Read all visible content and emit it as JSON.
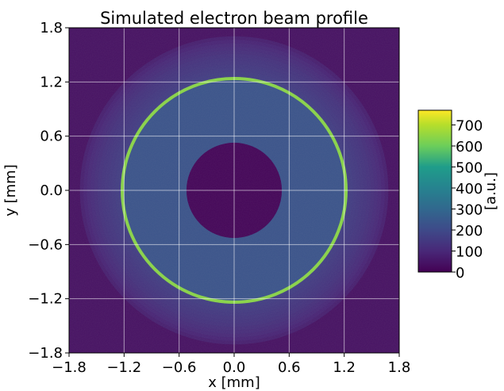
{
  "chart_data": {
    "type": "heatmap",
    "title": "Simulated electron beam profile",
    "xlabel": "x [mm]",
    "ylabel": "y [mm]",
    "xlim": [
      -1.8,
      1.8
    ],
    "ylim": [
      -1.8,
      1.8
    ],
    "x_ticks": [
      "−1.8",
      "−1.2",
      "−0.6",
      "0.0",
      "0.6",
      "1.2",
      "1.8"
    ],
    "y_ticks": [
      "−1.8",
      "−1.2",
      "−0.6",
      "0.0",
      "0.6",
      "1.2",
      "1.8"
    ],
    "x_tick_values": [
      -1.8,
      -1.2,
      -0.6,
      0.0,
      0.6,
      1.2,
      1.8
    ],
    "y_tick_values": [
      -1.8,
      -1.2,
      -0.6,
      0.0,
      0.6,
      1.2,
      1.8
    ],
    "grid": true,
    "colormap": "viridis",
    "colorbar": {
      "label": "[a.u.]",
      "range": [
        0,
        770
      ],
      "ticks": [
        "0",
        "100",
        "200",
        "300",
        "400",
        "500",
        "600",
        "700"
      ],
      "tick_values": [
        0,
        100,
        200,
        300,
        400,
        500,
        600,
        700
      ]
    },
    "profile": {
      "hole_radius_mm": 0.52,
      "hole_intensity": 10,
      "ring_radius_mm": 1.22,
      "ring_intensity": 640,
      "inner_disk_intensity": 230,
      "halo_outer_radius_mm": 1.72,
      "halo_intensity": 170,
      "background_intensity": 40
    }
  }
}
